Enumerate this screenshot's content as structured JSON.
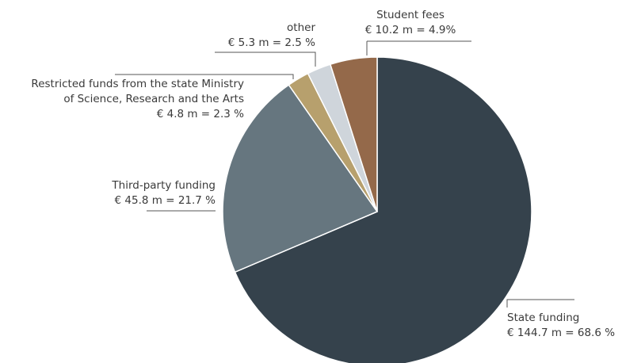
{
  "chart_data": {
    "type": "pie",
    "title": "",
    "slices": [
      {
        "key": "state",
        "label": "State funding",
        "amount": "€ 144.7 m",
        "percent": 68.6,
        "value_text": "€ 144.7 m = 68.6 %",
        "color": "#35424c"
      },
      {
        "key": "third",
        "label": "Third-party funding",
        "amount": "€ 45.8 m",
        "percent": 21.7,
        "value_text": "€ 45.8 m = 21.7 %",
        "color": "#66767f"
      },
      {
        "key": "restricted",
        "label": "Restricted funds from the state Ministry of Science, Research and the Arts",
        "label_lines": [
          "Restricted funds from the state Ministry",
          "of Science, Research and the Arts"
        ],
        "amount": "€ 4.8 m",
        "percent": 2.3,
        "value_text": "€ 4.8 m = 2.3 %",
        "color": "#b7a06d"
      },
      {
        "key": "other",
        "label": "other",
        "amount": "€ 5.3 m",
        "percent": 2.5,
        "value_text": "€ 5.3 m = 2.5 %",
        "color": "#cfd5db"
      },
      {
        "key": "fees",
        "label": "Student fees",
        "amount": "€ 10.2 m",
        "percent": 4.9,
        "value_text": "€ 10.2 m = 4.9%",
        "color": "#94694a"
      }
    ]
  }
}
